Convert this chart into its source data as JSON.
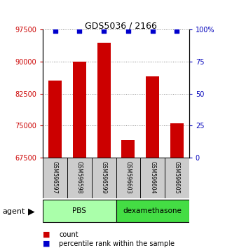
{
  "title": "GDS5036 / 2166",
  "samples": [
    "GSM596597",
    "GSM596598",
    "GSM596599",
    "GSM596603",
    "GSM596604",
    "GSM596605"
  ],
  "counts": [
    85500,
    90000,
    94500,
    71500,
    86500,
    75500
  ],
  "percentiles": [
    99,
    99,
    99,
    99,
    99,
    99
  ],
  "groups": [
    {
      "label": "PBS",
      "indices": [
        0,
        1,
        2
      ],
      "color": "#aaffaa"
    },
    {
      "label": "dexamethasone",
      "indices": [
        3,
        4,
        5
      ],
      "color": "#44dd44"
    }
  ],
  "bar_color": "#CC0000",
  "dot_color": "#0000CC",
  "ylim_left": [
    67500,
    97500
  ],
  "yticks_left": [
    67500,
    75000,
    82500,
    90000,
    97500
  ],
  "ylim_right": [
    0,
    100
  ],
  "yticks_right": [
    0,
    25,
    50,
    75,
    100
  ],
  "ylabel_left_color": "#CC0000",
  "ylabel_right_color": "#0000BB",
  "legend_count_label": "count",
  "legend_pct_label": "percentile rank within the sample",
  "agent_label": "agent",
  "background_color": "#ffffff",
  "bar_width": 0.55
}
